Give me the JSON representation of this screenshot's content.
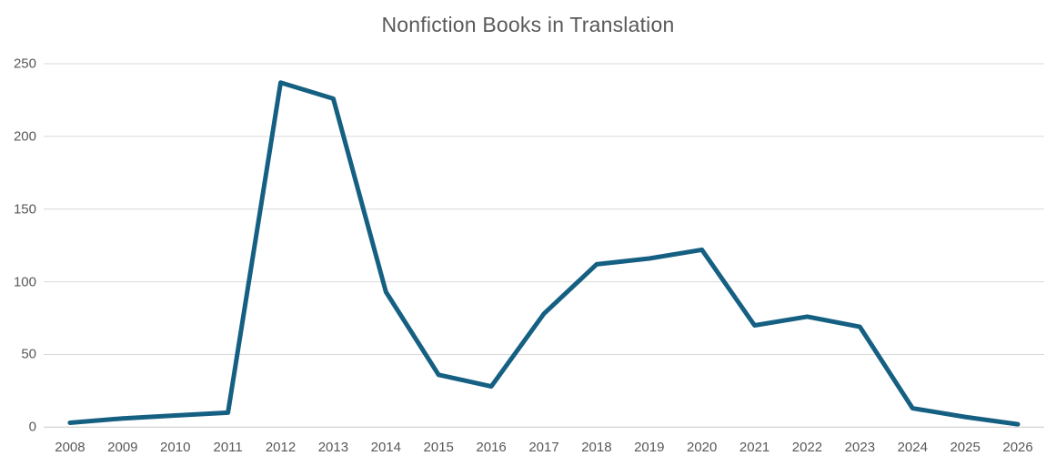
{
  "chart_data": {
    "type": "line",
    "title": "Nonfiction Books in Translation",
    "categories": [
      "2008",
      "2009",
      "2010",
      "2011",
      "2012",
      "2013",
      "2014",
      "2015",
      "2016",
      "2017",
      "2018",
      "2019",
      "2020",
      "2021",
      "2022",
      "2023",
      "2024",
      "2025",
      "2026"
    ],
    "series": [
      {
        "name": "Nonfiction Books in Translation",
        "values": [
          3,
          6,
          8,
          10,
          237,
          226,
          93,
          36,
          28,
          78,
          112,
          116,
          122,
          70,
          76,
          69,
          13,
          7,
          2
        ]
      }
    ],
    "xlabel": "",
    "ylabel": "",
    "ylim": [
      0,
      250
    ],
    "yticks": [
      0,
      50,
      100,
      150,
      200,
      250
    ],
    "grid": "horizontal",
    "legend": "none",
    "colors": {
      "line": "#156082",
      "text": "#595959",
      "gridline": "#d9d9d9",
      "axis_line": "#c8c8c8",
      "background": "#ffffff"
    }
  }
}
